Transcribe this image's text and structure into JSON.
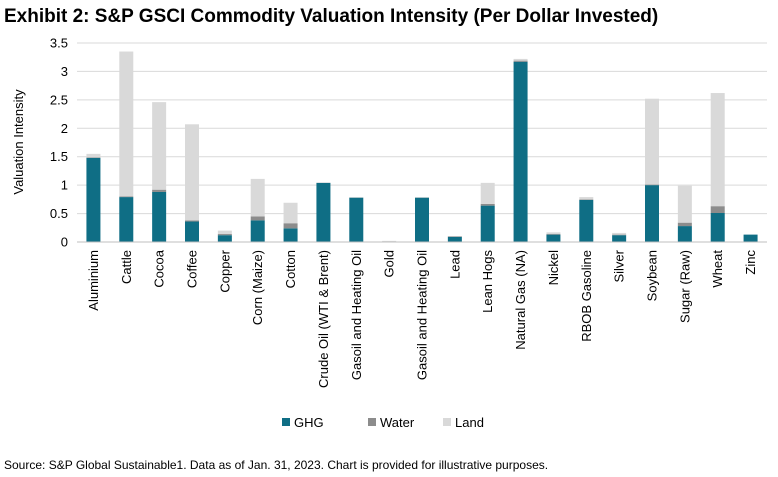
{
  "title": "Exhibit 2: S&P GSCI Commodity Valuation Intensity (Per Dollar Invested)",
  "source": "Source: S&P Global Sustainable1. Data as of Jan. 31, 2023. Chart is provided for illustrative purposes.",
  "colors": {
    "GHG": "#0f6e85",
    "Water": "#8c8c8c",
    "Land": "#d9d9d9",
    "grid": "#d9d9d9",
    "axis": "#bfbfbf"
  },
  "chart_data": {
    "type": "bar",
    "stacked": true,
    "ylabel": "Valuation Intensity",
    "ylim": [
      0,
      3.5
    ],
    "yticks": [
      "0",
      "0.5",
      "1",
      "1.5",
      "2",
      "2.5",
      "3",
      "3.5"
    ],
    "grid": true,
    "legend_position": "bottom",
    "categories": [
      "Aluminium",
      "Cattle",
      "Cocoa",
      "Coffee",
      "Copper",
      "Corn (Maize)",
      "Cotton",
      "Crude Oil (WTI & Brent)",
      "Gasoil and Heating Oil",
      "Gold",
      "Gasoil and Heating Oil",
      "Lead",
      "Lean Hogs",
      "Natural Gas (NA)",
      "Nickel",
      "RBOB Gasoline",
      "Silver",
      "Soybean",
      "Sugar (Raw)",
      "Wheat",
      "Zinc"
    ],
    "series": [
      {
        "name": "GHG",
        "values": [
          1.48,
          0.79,
          0.88,
          0.36,
          0.12,
          0.38,
          0.24,
          1.04,
          0.78,
          0.0,
          0.78,
          0.09,
          0.64,
          3.17,
          0.13,
          0.74,
          0.12,
          1.0,
          0.28,
          0.51,
          0.13
        ]
      },
      {
        "name": "Water",
        "values": [
          0.01,
          0.01,
          0.04,
          0.02,
          0.02,
          0.07,
          0.09,
          0.0,
          0.0,
          0.0,
          0.0,
          0.01,
          0.03,
          0.02,
          0.01,
          0.01,
          0.01,
          0.01,
          0.06,
          0.12,
          0.0
        ]
      },
      {
        "name": "Land",
        "values": [
          0.06,
          2.55,
          1.54,
          1.69,
          0.06,
          0.66,
          0.36,
          0.01,
          0.01,
          0.02,
          0.01,
          0.0,
          0.37,
          0.03,
          0.03,
          0.04,
          0.03,
          1.51,
          0.65,
          1.99,
          0.0
        ]
      }
    ]
  }
}
